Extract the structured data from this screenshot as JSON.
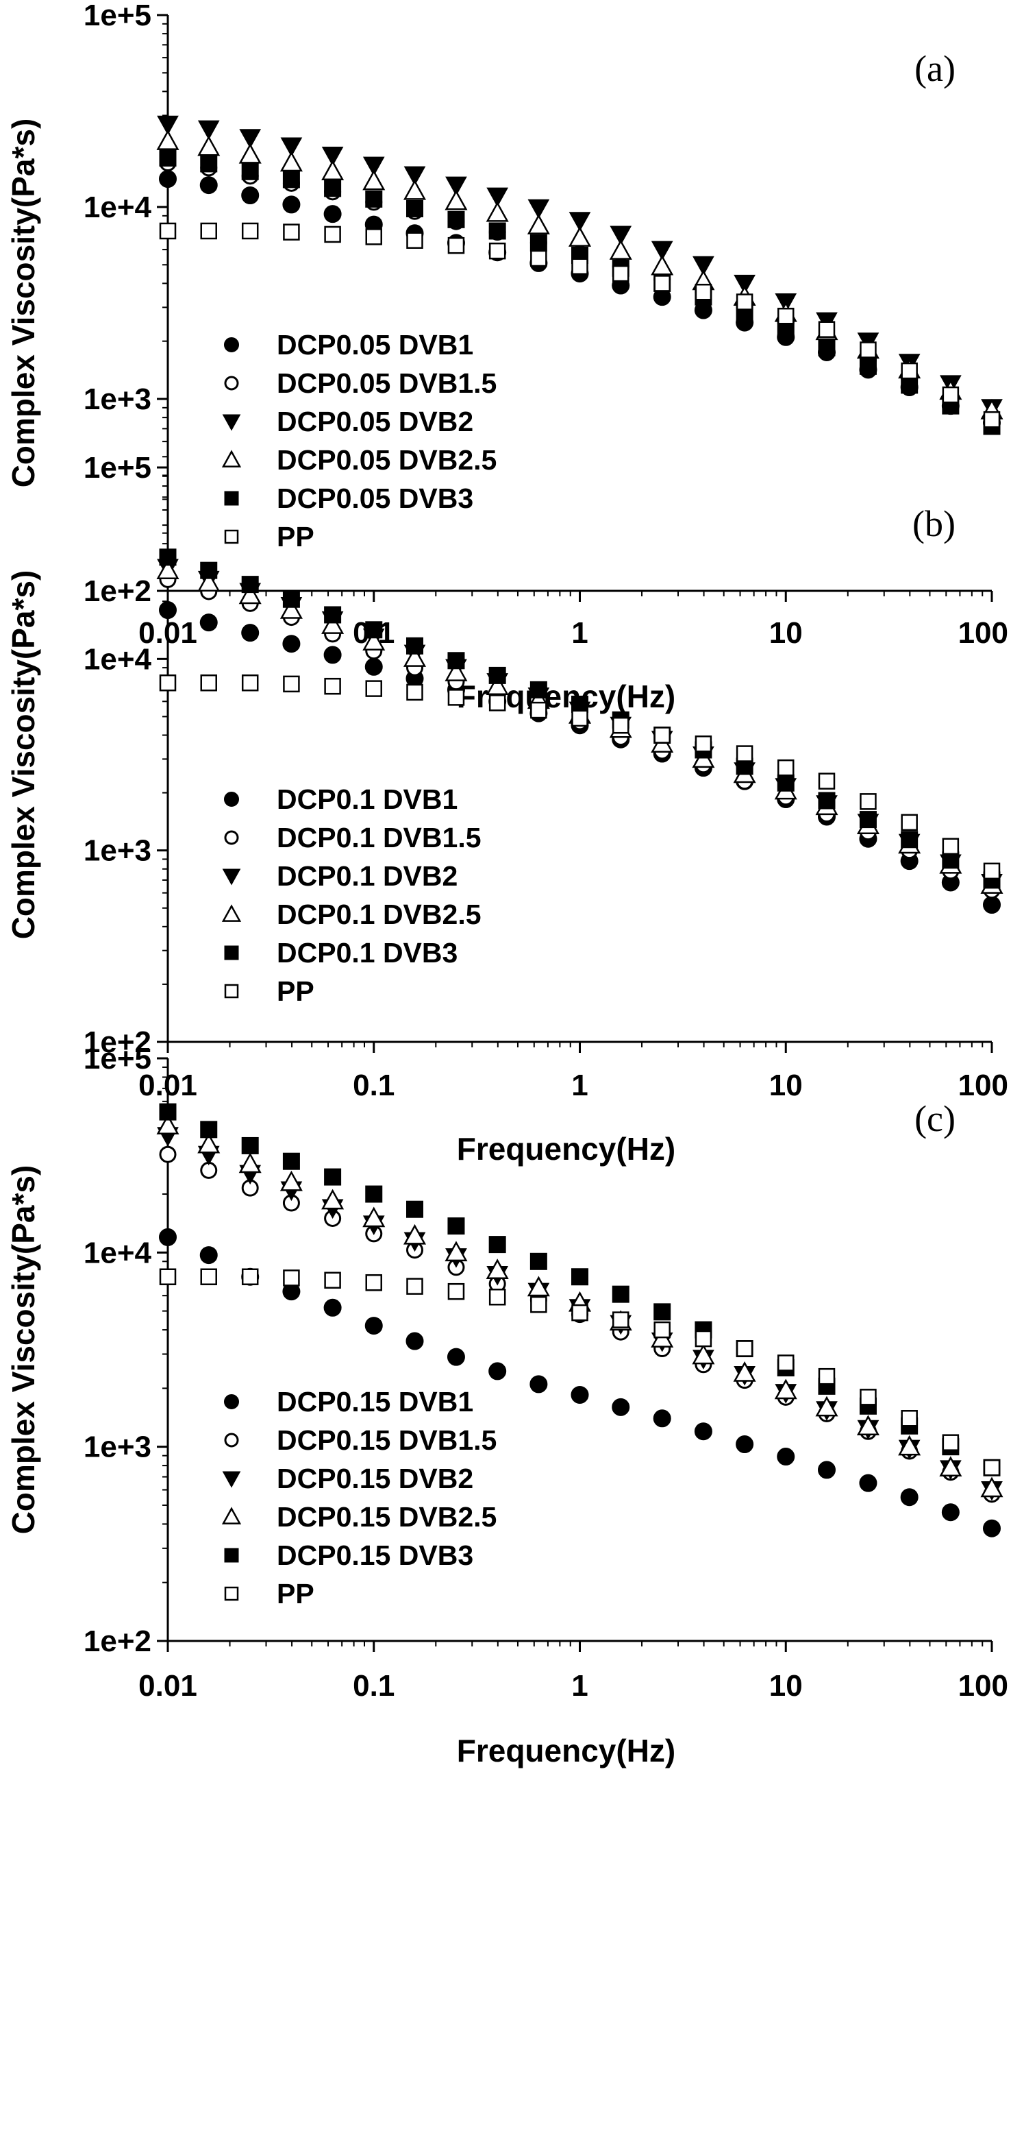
{
  "chart_data": [
    {
      "type": "scatter",
      "panel_label": "(a)",
      "xlabel": "Frequency(Hz)",
      "ylabel": "Complex Viscosity(Pa*s)",
      "x_scale": "log",
      "y_scale": "log",
      "xlim": [
        0.01,
        100
      ],
      "ylim": [
        100,
        100000
      ],
      "x_ticks": [
        "0.01",
        "0.1",
        "1",
        "10",
        "100"
      ],
      "y_ticks": [
        "1e+2",
        "1e+3",
        "1e+4",
        "1e+5"
      ],
      "legend_position": "lower-left",
      "x": [
        0.01,
        0.0158,
        0.0251,
        0.0398,
        0.0631,
        0.1,
        0.158,
        0.251,
        0.398,
        0.631,
        1,
        1.58,
        2.51,
        3.98,
        6.31,
        10,
        15.8,
        25.1,
        39.8,
        63.1,
        100
      ],
      "series": [
        {
          "name": "DCP0.05 DVB1",
          "marker": "filled-circle",
          "values": [
            14000,
            13000,
            11500,
            10300,
            9200,
            8100,
            7300,
            6500,
            5800,
            5100,
            4500,
            3900,
            3400,
            2900,
            2500,
            2100,
            1750,
            1420,
            1150,
            920,
            750
          ]
        },
        {
          "name": "DCP0.05 DVB1.5",
          "marker": "open-circle",
          "values": [
            17000,
            16000,
            14500,
            13300,
            12000,
            10600,
            9500,
            8400,
            7400,
            6500,
            5700,
            4900,
            4200,
            3600,
            3000,
            2500,
            2000,
            1600,
            1280,
            1000,
            780
          ]
        },
        {
          "name": "DCP0.05 DVB2",
          "marker": "filled-triangle-down",
          "values": [
            27000,
            25500,
            23000,
            20800,
            18600,
            16500,
            14700,
            13000,
            11400,
            9900,
            8500,
            7200,
            6000,
            5000,
            4000,
            3200,
            2550,
            2000,
            1550,
            1200,
            900
          ]
        },
        {
          "name": "DCP0.05 DVB2.5",
          "marker": "open-triangle-up",
          "values": [
            22000,
            20500,
            18700,
            17000,
            15300,
            13600,
            12100,
            10700,
            9300,
            8000,
            6900,
            5900,
            4900,
            4100,
            3400,
            2800,
            2250,
            1800,
            1420,
            1100,
            870
          ]
        },
        {
          "name": "DCP0.05 DVB3",
          "marker": "filled-square",
          "values": [
            18000,
            16800,
            15300,
            13900,
            12500,
            11000,
            9800,
            8600,
            7500,
            6500,
            5600,
            4800,
            4000,
            3400,
            2800,
            2300,
            1850,
            1480,
            1180,
            920,
            720
          ]
        },
        {
          "name": "PP",
          "marker": "open-square",
          "values": [
            7500,
            7500,
            7500,
            7400,
            7200,
            7000,
            6700,
            6300,
            5900,
            5400,
            4900,
            4500,
            4000,
            3600,
            3200,
            2700,
            2300,
            1800,
            1400,
            1050,
            780
          ]
        }
      ]
    },
    {
      "type": "scatter",
      "panel_label": "(b)",
      "xlabel": "Frequency(Hz)",
      "ylabel": "Complex Viscosity(Pa*s)",
      "x_scale": "log",
      "y_scale": "log",
      "xlim": [
        0.01,
        100
      ],
      "ylim": [
        100,
        100000
      ],
      "x_ticks": [
        "0.01",
        "0.1",
        "1",
        "10",
        "100"
      ],
      "y_ticks": [
        "1e+2",
        "1e+3",
        "1e+4",
        "1e+5"
      ],
      "legend_position": "lower-left",
      "x": [
        0.01,
        0.0158,
        0.0251,
        0.0398,
        0.0631,
        0.1,
        0.158,
        0.251,
        0.398,
        0.631,
        1,
        1.58,
        2.51,
        3.98,
        6.31,
        10,
        15.8,
        25.1,
        39.8,
        63.1,
        100
      ],
      "series": [
        {
          "name": "DCP0.1 DVB1",
          "marker": "filled-circle",
          "values": [
            18000,
            15500,
            13700,
            12000,
            10500,
            9100,
            7900,
            6900,
            6000,
            5200,
            4500,
            3800,
            3200,
            2700,
            2300,
            1850,
            1500,
            1150,
            880,
            680,
            520
          ]
        },
        {
          "name": "DCP0.1 DVB1.5",
          "marker": "open-circle",
          "values": [
            26000,
            22500,
            19500,
            16500,
            13500,
            11000,
            9000,
            7600,
            6500,
            5500,
            4700,
            3900,
            3300,
            2800,
            2300,
            1900,
            1550,
            1250,
            1000,
            780,
            620
          ]
        },
        {
          "name": "DCP0.1 DVB2",
          "marker": "filled-triangle-down",
          "values": [
            30000,
            26000,
            22500,
            19000,
            16000,
            13000,
            10700,
            9000,
            7600,
            6400,
            5400,
            4500,
            3800,
            3150,
            2600,
            2150,
            1750,
            1400,
            1100,
            860,
            680
          ]
        },
        {
          "name": "DCP0.1 DVB2.5",
          "marker": "open-triangle-up",
          "values": [
            29000,
            25000,
            21500,
            18000,
            15000,
            12300,
            10100,
            8500,
            7200,
            6100,
            5100,
            4300,
            3600,
            3000,
            2500,
            2050,
            1700,
            1350,
            1070,
            840,
            660
          ]
        },
        {
          "name": "DCP0.1 DVB3",
          "marker": "filled-square",
          "values": [
            34000,
            29000,
            24500,
            20500,
            17000,
            14200,
            11700,
            9800,
            8200,
            6900,
            5800,
            4800,
            4000,
            3350,
            2750,
            2250,
            1820,
            1450,
            1140,
            890,
            700
          ]
        },
        {
          "name": "PP",
          "marker": "open-square",
          "values": [
            7500,
            7500,
            7500,
            7400,
            7200,
            7000,
            6700,
            6300,
            5900,
            5400,
            4900,
            4500,
            4000,
            3600,
            3200,
            2700,
            2300,
            1800,
            1400,
            1050,
            780
          ]
        }
      ]
    },
    {
      "type": "scatter",
      "panel_label": "(c)",
      "xlabel": "Frequency(Hz)",
      "ylabel": "Complex Viscosity(Pa*s)",
      "x_scale": "log",
      "y_scale": "log",
      "xlim": [
        0.01,
        100
      ],
      "ylim": [
        100,
        100000
      ],
      "x_ticks": [
        "0.01",
        "0.1",
        "1",
        "10",
        "100"
      ],
      "y_ticks": [
        "1e+2",
        "1e+3",
        "1e+4",
        "1e+5"
      ],
      "legend_position": "lower-left",
      "x": [
        0.01,
        0.0158,
        0.0251,
        0.0398,
        0.0631,
        0.1,
        0.158,
        0.251,
        0.398,
        0.631,
        1,
        1.58,
        2.51,
        3.98,
        6.31,
        10,
        15.8,
        25.1,
        39.8,
        63.1,
        100
      ],
      "series": [
        {
          "name": "DCP0.15 DVB1",
          "marker": "filled-circle",
          "values": [
            12000,
            9700,
            7500,
            6300,
            5200,
            4200,
            3500,
            2900,
            2450,
            2100,
            1850,
            1600,
            1400,
            1200,
            1030,
            890,
            760,
            650,
            550,
            460,
            380
          ]
        },
        {
          "name": "DCP0.15 DVB1.5",
          "marker": "open-circle",
          "values": [
            32000,
            26500,
            21500,
            18000,
            15000,
            12500,
            10300,
            8400,
            6900,
            5700,
            4800,
            3900,
            3200,
            2650,
            2200,
            1800,
            1480,
            1200,
            950,
            740,
            570
          ]
        },
        {
          "name": "DCP0.15 DVB2",
          "marker": "filled-triangle-down",
          "values": [
            40000,
            32000,
            25500,
            21000,
            17000,
            14000,
            11500,
            9500,
            7700,
            6300,
            5200,
            4300,
            3500,
            2850,
            2350,
            1900,
            1550,
            1240,
            980,
            770,
            600
          ]
        },
        {
          "name": "DCP0.15 DVB2.5",
          "marker": "open-triangle-up",
          "values": [
            45000,
            36000,
            28500,
            23000,
            18500,
            15000,
            12200,
            10000,
            8100,
            6600,
            5500,
            4400,
            3600,
            2950,
            2400,
            1950,
            1590,
            1270,
            1000,
            780,
            610
          ]
        },
        {
          "name": "DCP0.15 DVB3",
          "marker": "filled-square",
          "values": [
            53000,
            43000,
            35500,
            29500,
            24500,
            20000,
            16700,
            13700,
            11000,
            9000,
            7500,
            6100,
            4950,
            4000,
            3200,
            2550,
            2050,
            1620,
            1280,
            1000,
            780
          ]
        },
        {
          "name": "PP",
          "marker": "open-square",
          "values": [
            7500,
            7500,
            7500,
            7400,
            7200,
            7000,
            6700,
            6300,
            5900,
            5400,
            4900,
            4500,
            4000,
            3600,
            3200,
            2700,
            2300,
            1800,
            1400,
            1050,
            780
          ]
        }
      ]
    }
  ]
}
